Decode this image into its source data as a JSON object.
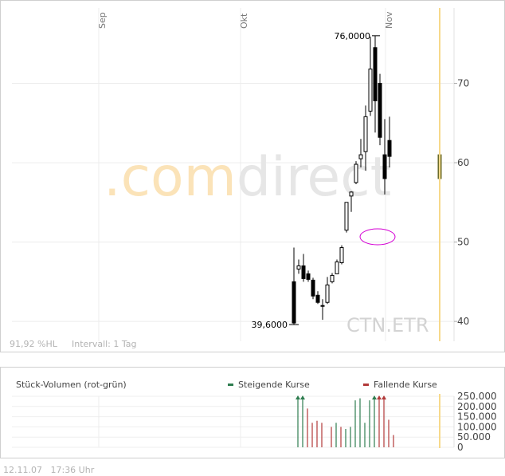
{
  "watermark": {
    "dot": ".",
    "com": "com",
    "direct": "direct"
  },
  "footer": {
    "date": "12.11.07",
    "time": "17:36 Uhr"
  },
  "chart_data": [
    {
      "type": "candlestick",
      "symbol": "CTN.ETR",
      "x_month_labels": [
        "Sep",
        "Okt",
        "Nov"
      ],
      "ylim": [
        37.5,
        79.5
      ],
      "y_ticks": [
        40,
        50,
        60,
        70
      ],
      "high_label": "76,0000",
      "low_label": "39,6000",
      "info_left": "91,92 %HL",
      "info_interval": "Intervall: 1 Tag",
      "grid": true,
      "candles": [
        {
          "o": 45.0,
          "h": 49.3,
          "l": 39.6,
          "c": 39.8
        },
        {
          "o": 46.6,
          "h": 47.8,
          "l": 46.0,
          "c": 47.0
        },
        {
          "o": 47.0,
          "h": 48.5,
          "l": 45.0,
          "c": 45.4
        },
        {
          "o": 46.0,
          "h": 46.4,
          "l": 45.0,
          "c": 45.3
        },
        {
          "o": 45.2,
          "h": 45.5,
          "l": 42.8,
          "c": 43.2
        },
        {
          "o": 43.3,
          "h": 43.8,
          "l": 42.2,
          "c": 42.4
        },
        {
          "o": 42.0,
          "h": 42.8,
          "l": 40.2,
          "c": 41.9
        },
        {
          "o": 42.4,
          "h": 45.6,
          "l": 42.2,
          "c": 44.6
        },
        {
          "o": 45.0,
          "h": 46.1,
          "l": 44.8,
          "c": 45.8
        },
        {
          "o": 46.0,
          "h": 47.8,
          "l": 46.0,
          "c": 47.5
        },
        {
          "o": 47.4,
          "h": 49.6,
          "l": 47.2,
          "c": 49.3
        },
        {
          "o": 51.5,
          "h": 55.0,
          "l": 51.2,
          "c": 55.0
        },
        {
          "o": 55.8,
          "h": 56.4,
          "l": 53.8,
          "c": 56.3
        },
        {
          "o": 57.5,
          "h": 60.2,
          "l": 57.3,
          "c": 59.8
        },
        {
          "o": 60.5,
          "h": 63.0,
          "l": 59.4,
          "c": 61.0
        },
        {
          "o": 61.4,
          "h": 67.2,
          "l": 59.0,
          "c": 65.8
        },
        {
          "o": 66.5,
          "h": 75.9,
          "l": 65.9,
          "c": 71.8
        },
        {
          "o": 74.5,
          "h": 76.0,
          "l": 63.8,
          "c": 67.8
        },
        {
          "o": 70.0,
          "h": 71.2,
          "l": 62.2,
          "c": 63.2
        },
        {
          "o": 61.0,
          "h": 65.5,
          "l": 56.0,
          "c": 58.0
        },
        {
          "o": 62.8,
          "h": 65.8,
          "l": 59.4,
          "c": 60.8
        }
      ],
      "last": {
        "o": 61.0,
        "h": 61.2,
        "l": 57.5,
        "c": 58.0
      }
    },
    {
      "type": "bar",
      "title": "Stück-Volumen (rot-grün)",
      "legend": {
        "up": "Steigende Kurse",
        "down": "Fallende Kurse"
      },
      "colors": {
        "up": "#2e7d4f",
        "down": "#b23a3a"
      },
      "ylim": [
        0,
        250000
      ],
      "y_ticks": [
        0,
        50000,
        100000,
        150000,
        200000,
        250000
      ],
      "y_tick_labels": [
        "0",
        "50.000",
        "100.000",
        "150.000",
        "200.000",
        "250.000"
      ],
      "values": [
        250000,
        250000,
        190000,
        120000,
        130000,
        120000,
        0,
        100000,
        120000,
        100000,
        90000,
        100000,
        230000,
        240000,
        120000,
        230000,
        250000,
        250000,
        250000,
        135000,
        60000
      ],
      "directions": [
        "up",
        "up",
        "down",
        "down",
        "down",
        "down",
        "none",
        "down",
        "up",
        "down",
        "up",
        "up",
        "up",
        "up",
        "up",
        "up",
        "up",
        "down",
        "down",
        "down",
        "down"
      ],
      "clipped": [
        true,
        true,
        false,
        false,
        false,
        false,
        false,
        false,
        false,
        false,
        false,
        false,
        false,
        false,
        false,
        false,
        true,
        true,
        true,
        false,
        false
      ]
    }
  ]
}
